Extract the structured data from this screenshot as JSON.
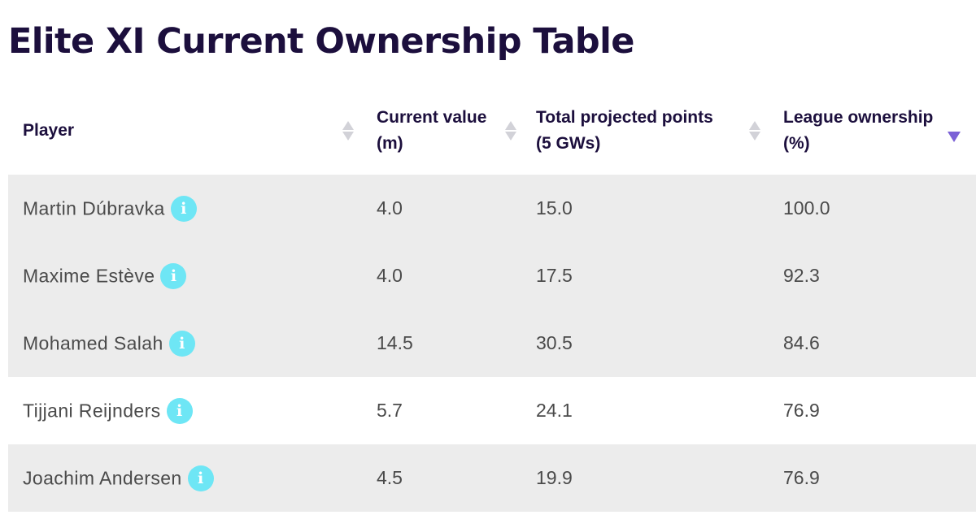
{
  "title": "Elite XI Current Ownership Table",
  "table": {
    "headers": [
      {
        "line1": "Player",
        "line2": ""
      },
      {
        "line1": "Current value",
        "line2": "(m)"
      },
      {
        "line1": "Total projected points",
        "line2": "(5 GWs)"
      },
      {
        "line1": "League ownership",
        "line2": "(%)"
      }
    ],
    "sort": {
      "column": "League ownership (%)",
      "direction": "descending"
    },
    "rows": [
      {
        "player": "Martin Dúbravka",
        "value": "4.0",
        "points": "15.0",
        "ownership": "100.0"
      },
      {
        "player": "Maxime Estève",
        "value": "4.0",
        "points": "17.5",
        "ownership": "92.3"
      },
      {
        "player": "Mohamed Salah",
        "value": "14.5",
        "points": "30.5",
        "ownership": "84.6"
      },
      {
        "player": "Tijjani Reijnders",
        "value": "5.7",
        "points": "24.1",
        "ownership": "76.9"
      },
      {
        "player": "Joachim Andersen",
        "value": "4.5",
        "points": "19.9",
        "ownership": "76.9"
      }
    ]
  },
  "icons": {
    "info": "info-icon",
    "sort": "sort-arrows-icon"
  },
  "colors": {
    "title": "#1c0f3d",
    "row_shade": "#ececec",
    "info_icon": "#6ee6f5",
    "sort_active": "#7b61d6"
  }
}
